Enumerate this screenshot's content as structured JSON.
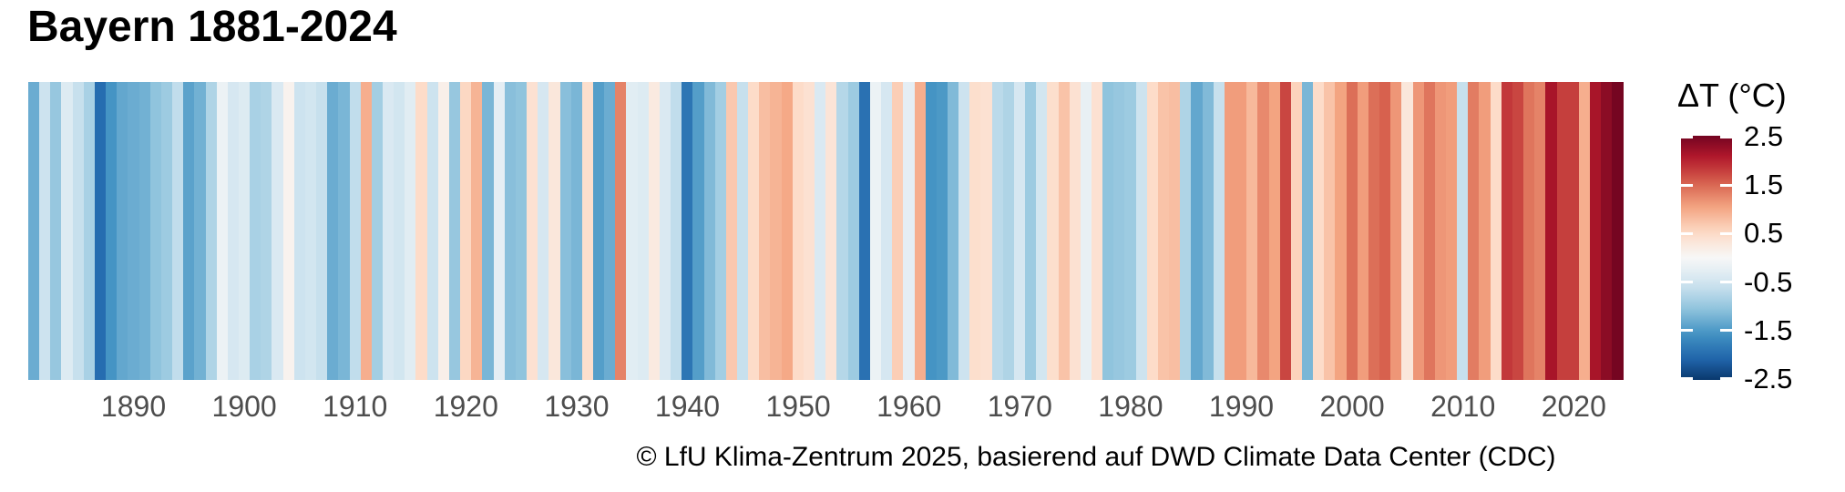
{
  "header": {
    "title": "Bayern 1881-2024"
  },
  "caption": "© LfU Klima-Zentrum 2025, basierend auf DWD Climate Data Center (CDC)",
  "legend": {
    "title": "ΔT (°C)",
    "position": "right",
    "tick_labels": [
      "2.5",
      "1.5",
      "0.5",
      "-0.5",
      "-1.5",
      "-2.5"
    ],
    "tick_values": [
      2.5,
      1.5,
      0.5,
      -0.5,
      -1.5,
      -2.5
    ],
    "domain": [
      -2.52,
      2.52
    ]
  },
  "colors": {
    "background": "#ffffff",
    "title_text": "#000000",
    "axis_text": "#4d4d4d",
    "caption_text": "#000000",
    "colormap_stops": [
      "#053061",
      "#2166ac",
      "#4393c3",
      "#92c5de",
      "#d1e5f0",
      "#f7f7f7",
      "#fddbc7",
      "#f4a582",
      "#d6604d",
      "#b2182b",
      "#67001f"
    ]
  },
  "chart_data": {
    "type": "heatmap",
    "variant": "warming-stripes",
    "title": "Bayern 1881-2024",
    "xlabel": "",
    "ylabel": "ΔT (°C)",
    "unit": "°C",
    "grid": false,
    "legend_position": "right",
    "start_year": 1881,
    "end_year": 2024,
    "color_domain": [
      -2.6,
      2.6
    ],
    "x_tick_years": [
      1890,
      1900,
      1910,
      1920,
      1930,
      1940,
      1950,
      1960,
      1970,
      1980,
      1990,
      2000,
      2010,
      2020
    ],
    "x_tick_labels": [
      "1890",
      "1900",
      "1910",
      "1920",
      "1930",
      "1940",
      "1950",
      "1960",
      "1970",
      "1980",
      "1990",
      "2000",
      "2010",
      "2020"
    ],
    "values": [
      -1.3,
      -0.55,
      -1.0,
      -0.35,
      -0.6,
      -0.85,
      -2.0,
      -1.55,
      -1.35,
      -1.3,
      -1.25,
      -1.05,
      -0.95,
      -0.65,
      -1.4,
      -1.25,
      -0.8,
      -0.15,
      -0.45,
      -0.35,
      -0.85,
      -0.8,
      -0.4,
      0.1,
      -0.55,
      -0.5,
      -0.6,
      -1.3,
      -1.2,
      -0.65,
      0.95,
      -0.9,
      -0.4,
      -0.5,
      -0.3,
      0.5,
      -0.55,
      0.15,
      -1.0,
      0.55,
      0.9,
      -1.2,
      -0.25,
      -1.1,
      -1.05,
      0.4,
      -0.45,
      0.3,
      -1.1,
      -1.2,
      0.45,
      -1.45,
      -1.3,
      1.3,
      -0.3,
      -0.35,
      0.25,
      -0.4,
      -0.65,
      -1.9,
      -1.45,
      -1.15,
      -0.9,
      0.7,
      -0.6,
      0.5,
      0.8,
      0.9,
      1.0,
      0.5,
      0.4,
      -0.4,
      0.35,
      -0.75,
      -0.95,
      -1.95,
      -0.15,
      -0.45,
      0.65,
      -0.25,
      0.95,
      -1.55,
      -1.5,
      -1.15,
      -0.55,
      0.45,
      0.4,
      -0.7,
      -0.8,
      -0.45,
      -0.95,
      -0.5,
      0.45,
      0.75,
      0.4,
      -0.2,
      0.4,
      -1.05,
      -1.0,
      -0.95,
      -0.55,
      0.5,
      0.75,
      0.8,
      -0.8,
      -1.35,
      -1.15,
      -0.6,
      1.1,
      1.1,
      0.85,
      1.25,
      1.05,
      1.75,
      0.6,
      -1.2,
      0.5,
      0.75,
      1.05,
      1.45,
      1.1,
      1.45,
      1.55,
      1.15,
      0.3,
      1.15,
      1.4,
      1.15,
      1.1,
      -0.6,
      1.35,
      1.1,
      0.5,
      1.85,
      1.75,
      1.4,
      1.3,
      2.15,
      1.8,
      1.8,
      0.95,
      2.15,
      2.35,
      2.5
    ]
  }
}
